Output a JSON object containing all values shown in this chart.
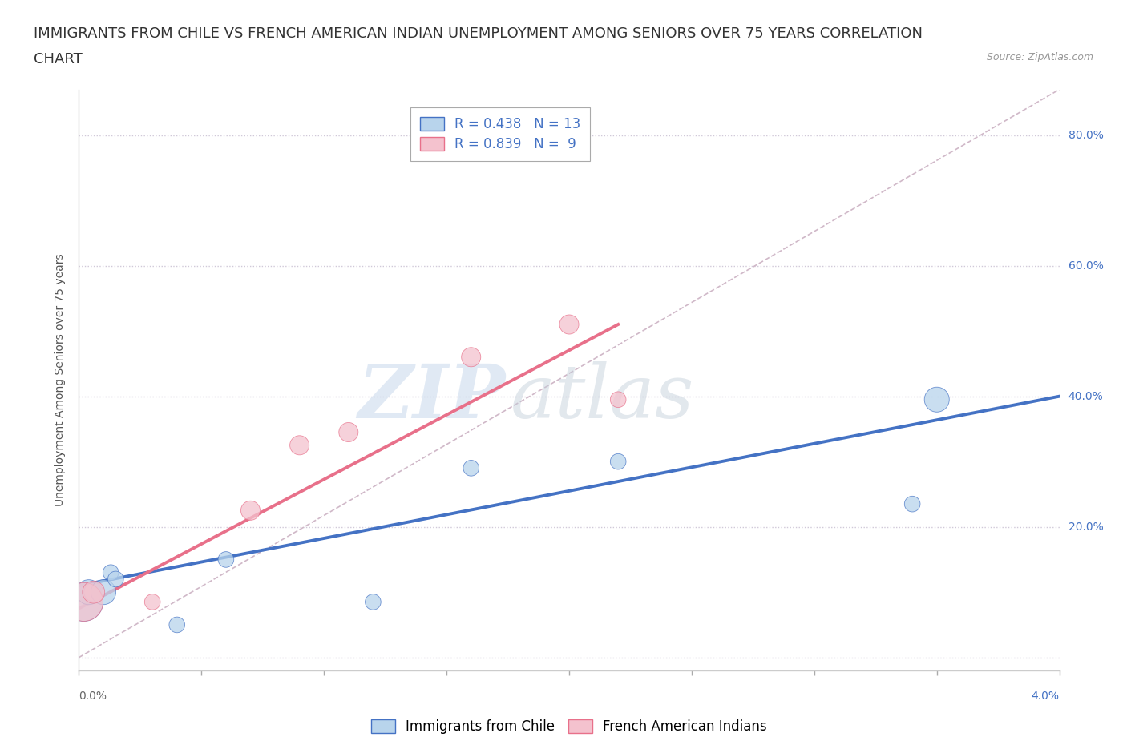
{
  "title_line1": "IMMIGRANTS FROM CHILE VS FRENCH AMERICAN INDIAN UNEMPLOYMENT AMONG SENIORS OVER 75 YEARS CORRELATION",
  "title_line2": "CHART",
  "source": "Source: ZipAtlas.com",
  "ylabel": "Unemployment Among Seniors over 75 years",
  "ytick_values": [
    0.0,
    0.2,
    0.4,
    0.6,
    0.8
  ],
  "ytick_labels": [
    "",
    "20.0%",
    "40.0%",
    "60.0%",
    "80.0%"
  ],
  "xmin": 0.0,
  "xmax": 0.04,
  "ymin": -0.02,
  "ymax": 0.87,
  "blue_scatter_x": [
    0.0002,
    0.0004,
    0.0006,
    0.001,
    0.0013,
    0.0015,
    0.004,
    0.006,
    0.012,
    0.016,
    0.022,
    0.034,
    0.035
  ],
  "blue_scatter_y": [
    0.085,
    0.1,
    0.1,
    0.1,
    0.13,
    0.12,
    0.05,
    0.15,
    0.085,
    0.29,
    0.3,
    0.235,
    0.395
  ],
  "blue_scatter_sizes": [
    1200,
    500,
    300,
    500,
    200,
    200,
    200,
    200,
    200,
    200,
    200,
    200,
    500
  ],
  "pink_scatter_x": [
    0.0002,
    0.0006,
    0.003,
    0.007,
    0.009,
    0.011,
    0.016,
    0.02,
    0.022
  ],
  "pink_scatter_y": [
    0.085,
    0.1,
    0.085,
    0.225,
    0.325,
    0.345,
    0.46,
    0.51,
    0.395
  ],
  "pink_scatter_sizes": [
    1200,
    400,
    200,
    300,
    300,
    300,
    300,
    300,
    200
  ],
  "blue_line_x": [
    0.0,
    0.04
  ],
  "blue_line_y": [
    0.11,
    0.4
  ],
  "pink_line_x": [
    0.0,
    0.022
  ],
  "pink_line_y": [
    0.075,
    0.51
  ],
  "ref_line_x": [
    0.0,
    0.04
  ],
  "ref_line_y": [
    0.0,
    0.87
  ],
  "blue_color": "#b8d4ec",
  "blue_line_color": "#4472c4",
  "pink_color": "#f4c2ce",
  "pink_line_color": "#e8708a",
  "ref_line_color": "#d0b8c8",
  "legend_text_color": "#4472c4",
  "watermark_zip": "ZIP",
  "watermark_atlas": "atlas",
  "background_color": "#ffffff",
  "grid_color": "#e8e8e8",
  "grid_dot_color": "#d0c8d8",
  "title_fontsize": 13,
  "axis_label_fontsize": 10,
  "tick_fontsize": 10,
  "legend_fontsize": 12
}
